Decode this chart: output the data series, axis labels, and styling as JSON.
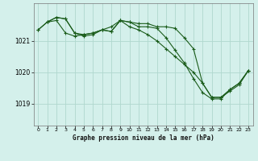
{
  "title": "Graphe pression niveau de la mer (hPa)",
  "background_color": "#d4f0eb",
  "grid_color": "#b0d8ce",
  "line_color": "#1a5c1a",
  "marker_color": "#1a5c1a",
  "xlim": [
    -0.5,
    23.5
  ],
  "ylim": [
    1018.3,
    1022.2
  ],
  "yticks": [
    1019,
    1020,
    1021
  ],
  "xticks": [
    0,
    1,
    2,
    3,
    4,
    5,
    6,
    7,
    8,
    9,
    10,
    11,
    12,
    13,
    14,
    15,
    16,
    17,
    18,
    19,
    20,
    21,
    22,
    23
  ],
  "series1_x": [
    0,
    1,
    2,
    3,
    4,
    5,
    6,
    7,
    8,
    9,
    10,
    11,
    12,
    13,
    14,
    15,
    16,
    17,
    18,
    19,
    20,
    21,
    22,
    23
  ],
  "series1_y": [
    1021.35,
    1021.6,
    1021.75,
    1021.7,
    1021.25,
    1021.2,
    1021.25,
    1021.35,
    1021.3,
    1021.65,
    1021.6,
    1021.55,
    1021.55,
    1021.45,
    1021.45,
    1021.4,
    1021.1,
    1020.75,
    1019.65,
    1019.2,
    1019.2,
    1019.45,
    1019.65,
    1020.05
  ],
  "series2_x": [
    0,
    1,
    2,
    3,
    4,
    5,
    6,
    7,
    8,
    9,
    10,
    11,
    12,
    13,
    14,
    15,
    16,
    17,
    18,
    19,
    20,
    21,
    22,
    23
  ],
  "series2_y": [
    1021.35,
    1021.6,
    1021.65,
    1021.25,
    1021.15,
    1021.2,
    1021.25,
    1021.35,
    1021.45,
    1021.65,
    1021.45,
    1021.35,
    1021.2,
    1021.0,
    1020.75,
    1020.5,
    1020.25,
    1020.0,
    1019.65,
    1019.2,
    1019.2,
    1019.4,
    1019.6,
    1020.05
  ],
  "series3_x": [
    1,
    2,
    3,
    4,
    5,
    6,
    7,
    8,
    9,
    10,
    11,
    12,
    13,
    14,
    15,
    16,
    17,
    18,
    19,
    20,
    21,
    22,
    23
  ],
  "series3_y": [
    1021.6,
    1021.75,
    1021.7,
    1021.25,
    1021.15,
    1021.2,
    1021.35,
    1021.3,
    1021.65,
    1021.6,
    1021.45,
    1021.45,
    1021.4,
    1021.1,
    1020.7,
    1020.3,
    1019.8,
    1019.35,
    1019.15,
    1019.15,
    1019.45,
    1019.65,
    1020.05
  ]
}
